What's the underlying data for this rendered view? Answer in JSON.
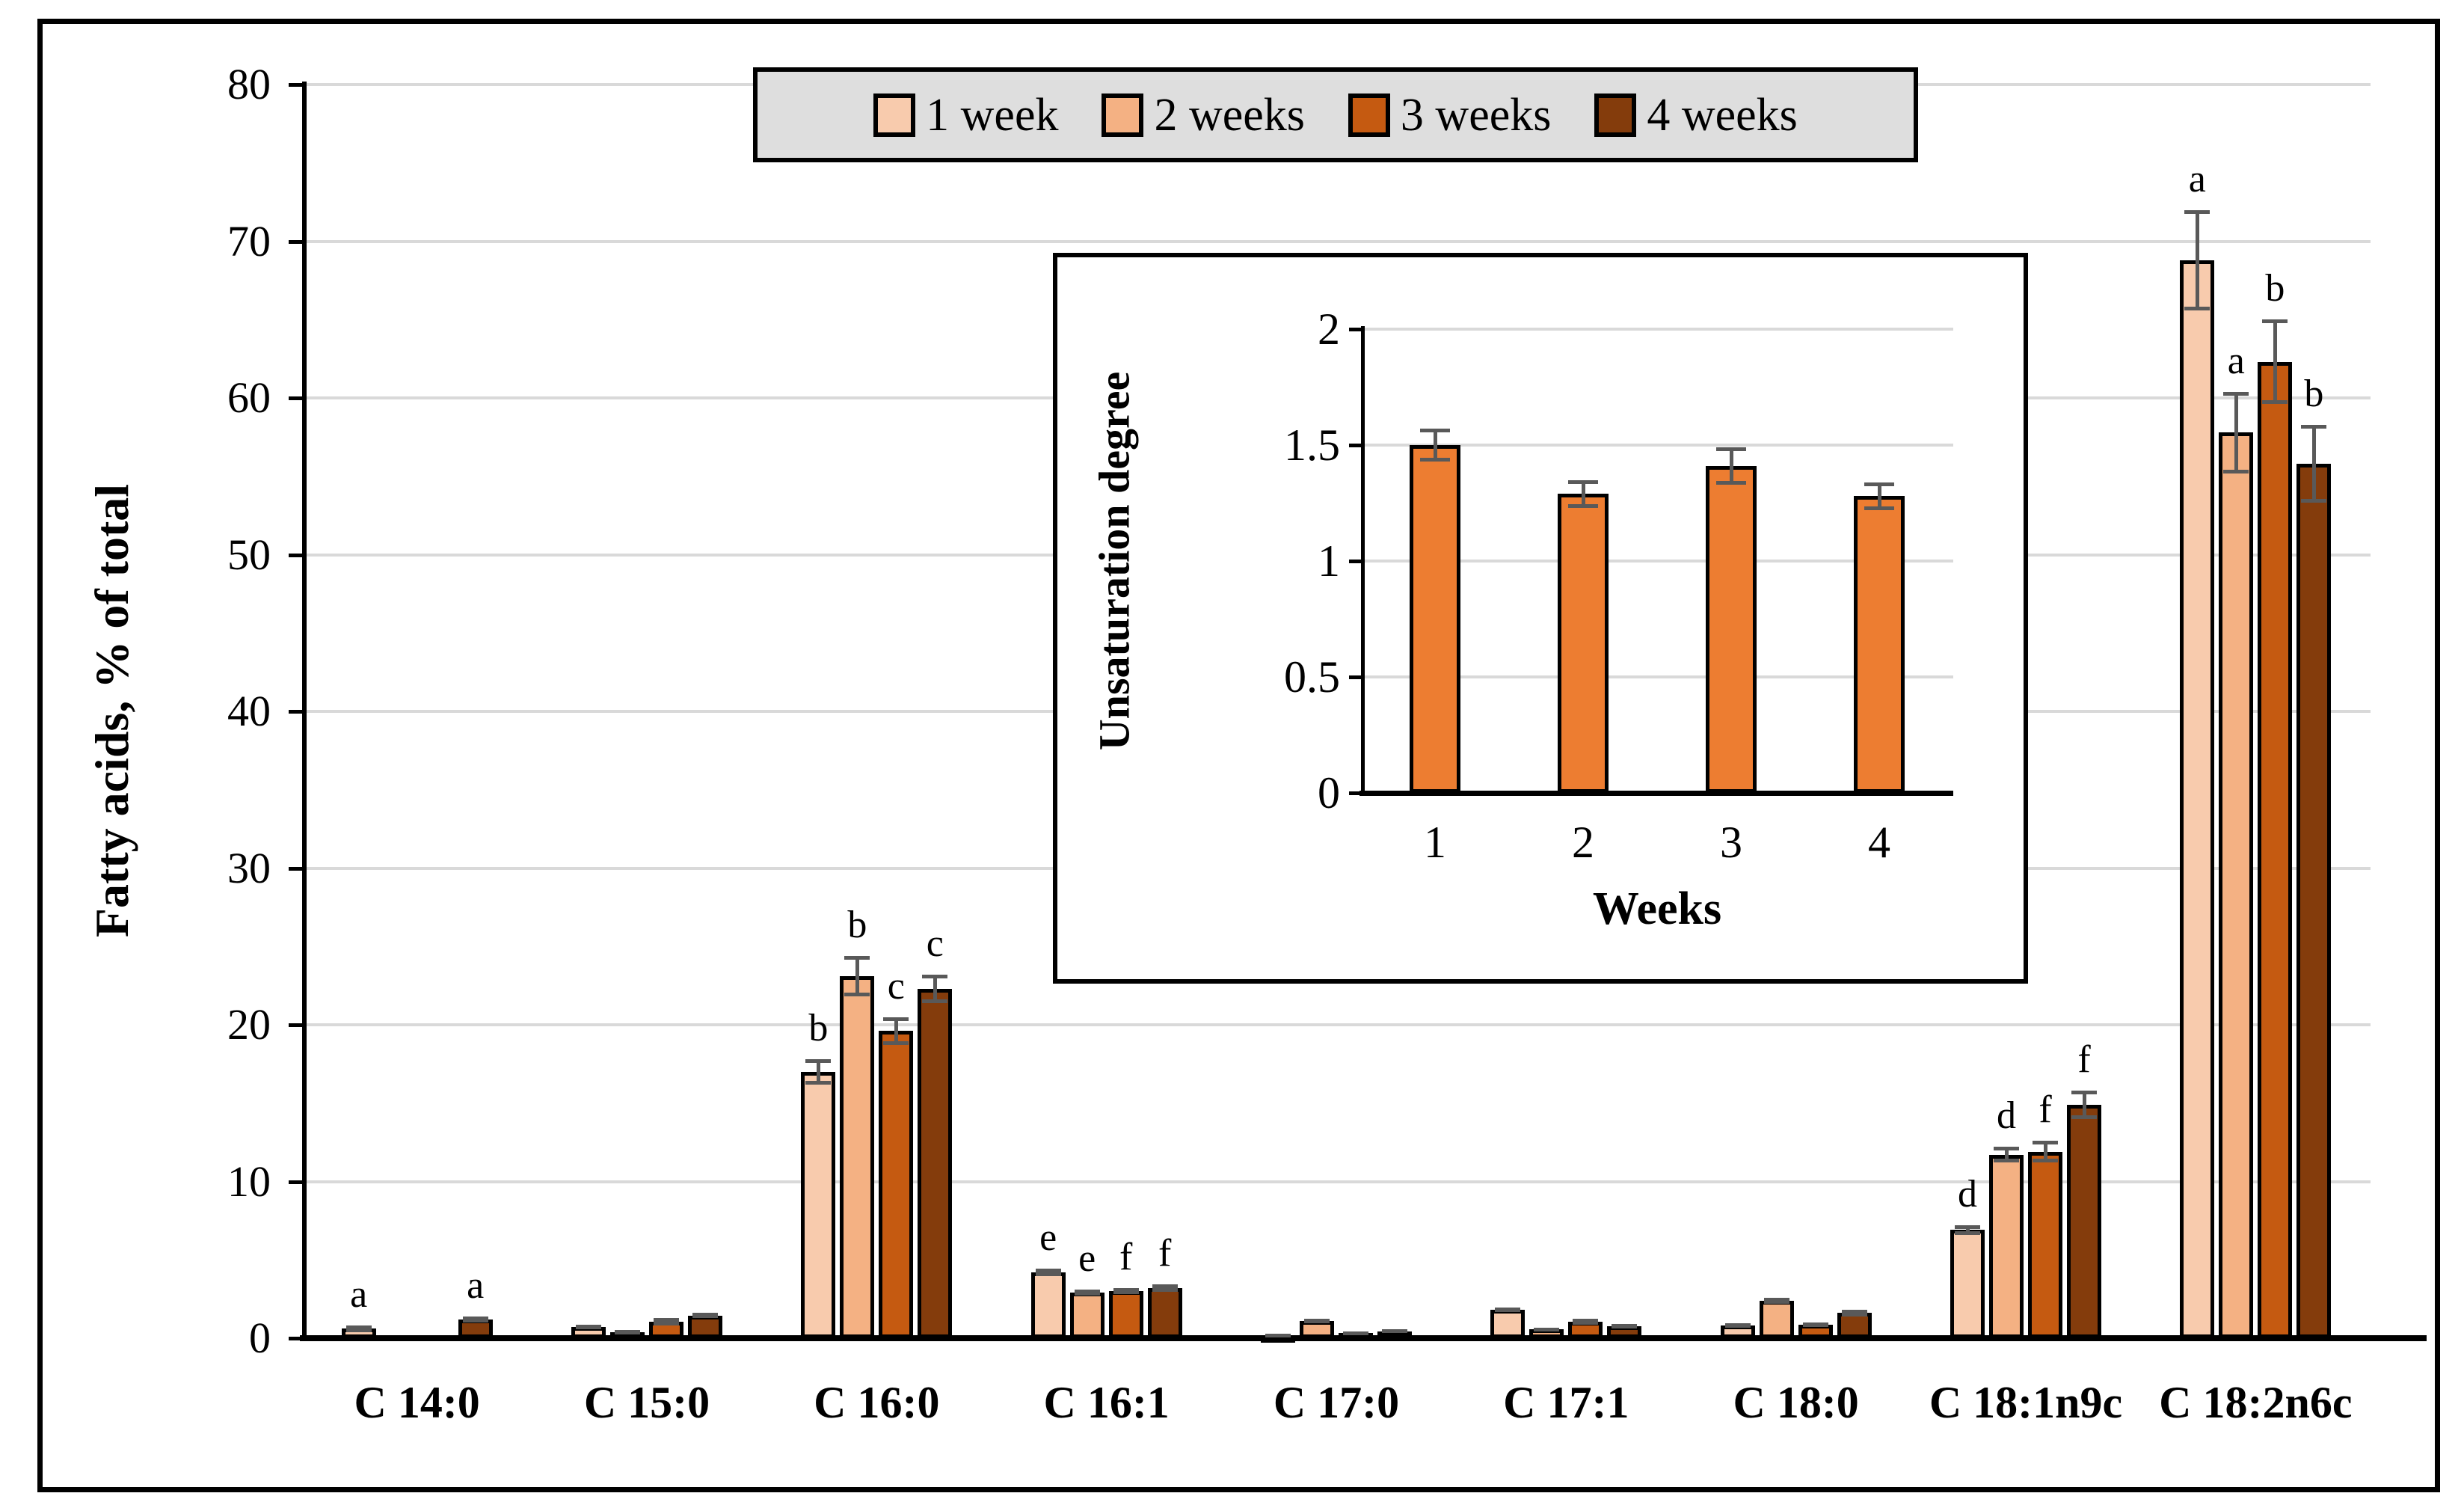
{
  "figure": {
    "background": "#FFFFFF",
    "border_color": "#000000",
    "gridline_color": "#D9D9D9",
    "error_bar_color": "#595959"
  },
  "legend": {
    "background": "#DEDEDE",
    "items": [
      {
        "label": "1 week",
        "color": "#F8CBAD"
      },
      {
        "label": "2 weeks",
        "color": "#F4B183"
      },
      {
        "label": "3 weeks",
        "color": "#C55A11"
      },
      {
        "label": "4 weeks",
        "color": "#843C0C"
      }
    ]
  },
  "chart_data": [
    {
      "type": "bar",
      "title": "",
      "ylabel": "Fatty acids, % of total",
      "xlabel": "",
      "ylim": [
        0,
        80
      ],
      "yticks": [
        0,
        10,
        20,
        30,
        40,
        50,
        60,
        70,
        80
      ],
      "grid": true,
      "legend_position": "top-center",
      "categories": [
        "C 14:0",
        "C 15:0",
        "C 16:0",
        "C 16:1",
        "C 17:0",
        "C 17:1",
        "C 18:0",
        "C 18:1n9c",
        "C 18:2n6c"
      ],
      "series": [
        {
          "name": "1 week",
          "color": "#F8CBAD",
          "values": [
            0.6,
            0.7,
            17.0,
            4.2,
            0.2,
            1.8,
            0.8,
            6.9,
            68.8
          ],
          "errors": [
            0.2,
            0.1,
            0.8,
            0.25,
            0.1,
            0.15,
            0.15,
            0.3,
            3.2
          ],
          "letters": [
            "a",
            "",
            "b",
            "e",
            "",
            "",
            "",
            "d",
            "a"
          ]
        },
        {
          "name": "2 weeks",
          "color": "#F4B183",
          "values": [
            0,
            0.4,
            23.1,
            2.9,
            1.1,
            0.55,
            2.4,
            11.7,
            57.8
          ],
          "errors": [
            0,
            0.1,
            1.3,
            0.2,
            0.15,
            0.1,
            0.2,
            0.5,
            2.6
          ],
          "letters": [
            "",
            "",
            "b",
            "e",
            "",
            "",
            "",
            "d",
            "a"
          ]
        },
        {
          "name": "3 weeks",
          "color": "#C55A11",
          "values": [
            0,
            1.05,
            19.6,
            3.0,
            0.35,
            1.05,
            0.85,
            11.9,
            62.3
          ],
          "errors": [
            0,
            0.25,
            0.9,
            0.2,
            0.1,
            0.2,
            0.15,
            0.7,
            2.7
          ],
          "letters": [
            "",
            "",
            "c",
            "f",
            "",
            "",
            "",
            "f",
            "b"
          ]
        },
        {
          "name": "4 weeks",
          "color": "#843C0C",
          "values": [
            1.2,
            1.45,
            22.3,
            3.2,
            0.45,
            0.75,
            1.6,
            14.9,
            55.8
          ],
          "errors": [
            0.2,
            0.15,
            0.9,
            0.25,
            0.1,
            0.1,
            0.2,
            0.9,
            2.5
          ],
          "letters": [
            "a",
            "",
            "c",
            "f",
            "",
            "",
            "",
            "f",
            "b"
          ]
        }
      ]
    },
    {
      "type": "bar",
      "title": "inset",
      "ylabel": "Unsaturation degree",
      "xlabel": "Weeks",
      "ylim": [
        0,
        2
      ],
      "yticks": [
        0,
        0.5,
        1,
        1.5,
        2
      ],
      "grid": true,
      "categories": [
        "1",
        "2",
        "3",
        "4"
      ],
      "series": [
        {
          "name": "Unsaturation degree",
          "color": "#ED7D31",
          "values": [
            1.5,
            1.29,
            1.41,
            1.28
          ],
          "errors": [
            0.07,
            0.06,
            0.08,
            0.06
          ]
        }
      ]
    }
  ]
}
